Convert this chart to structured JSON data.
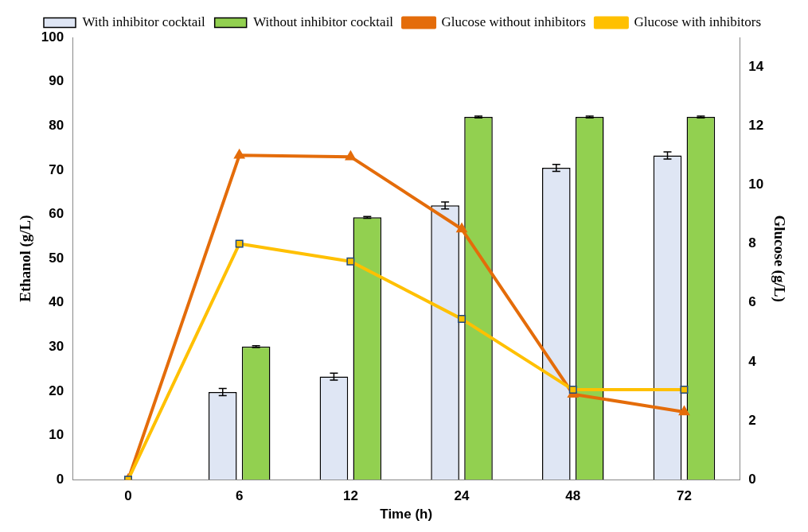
{
  "chart_data": {
    "type": "bar",
    "xlabel": "Time (h)",
    "ylabel": "Ethanol (g/L)",
    "y2label": "Glucose (g/L)",
    "categories": [
      "0",
      "6",
      "12",
      "24",
      "48",
      "72"
    ],
    "series": [
      {
        "name": "With inhibitor cocktail",
        "color": "#dfe6f4",
        "values": [
          0,
          19.8,
          23.3,
          62.0,
          70.5,
          73.3
        ],
        "errors": [
          null,
          0.8,
          0.8,
          0.8,
          0.8,
          0.8
        ]
      },
      {
        "name": "Without inhibitor cocktail",
        "color": "#92d050",
        "values": [
          0,
          30.1,
          59.3,
          82.0,
          82.0,
          82.0
        ],
        "errors": [
          null,
          0.2,
          0.2,
          0.2,
          0.2,
          0.2
        ]
      },
      {
        "name": "Glucose without inhibitors",
        "type": "line",
        "axis": "y2",
        "marker": "triangle",
        "color": "#e46c0a",
        "values": [
          0,
          11.0,
          10.95,
          8.5,
          2.9,
          2.3
        ]
      },
      {
        "name": "Glucose with inhibitors",
        "type": "line",
        "axis": "y2",
        "marker": "square",
        "color": "#ffc000",
        "values": [
          0,
          8.0,
          7.4,
          5.45,
          3.05,
          3.05
        ]
      }
    ],
    "ylim": [
      0,
      100
    ],
    "yticks": [
      0,
      10,
      20,
      30,
      40,
      50,
      60,
      70,
      80,
      90,
      100
    ],
    "y2lim": [
      0,
      15
    ],
    "y2ticks": [
      0,
      2,
      4,
      6,
      8,
      10,
      12,
      14
    ],
    "grid": false,
    "legend": "top"
  }
}
